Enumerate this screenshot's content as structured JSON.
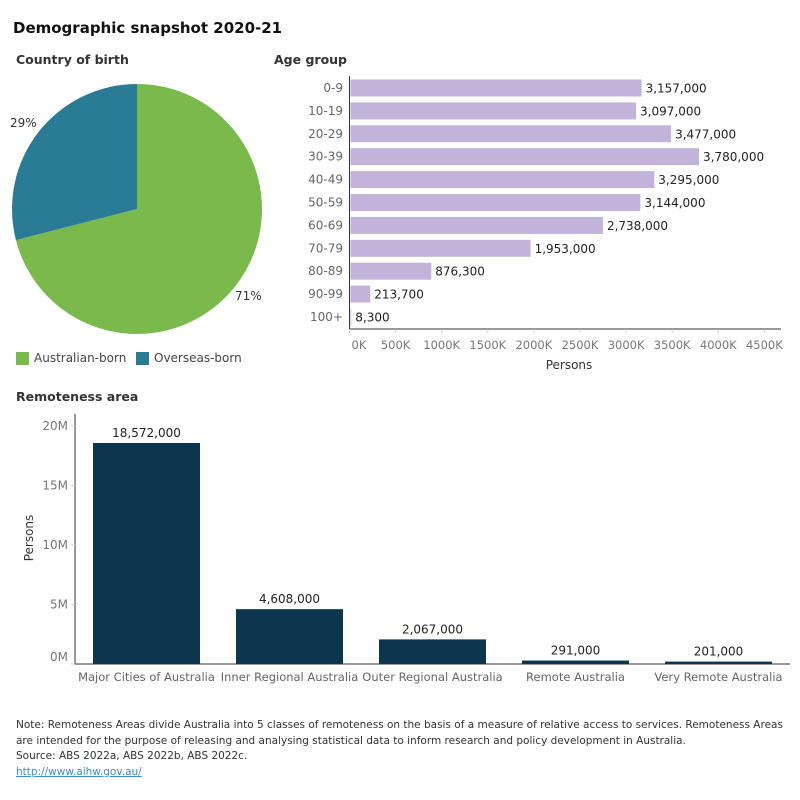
{
  "title": "Demographic snapshot 2020-21",
  "colors": {
    "australian_born": "#7ab94c",
    "overseas_born": "#2a7b96",
    "age_bar": "#c3b3da",
    "remote_bar": "#0b364d"
  },
  "chart_data": [
    {
      "type": "pie",
      "title": "Country of birth",
      "categories": [
        "Australian-born",
        "Overseas-born"
      ],
      "values": [
        71,
        29
      ],
      "labels": [
        "71%",
        "29%"
      ],
      "legend": "bottom"
    },
    {
      "type": "bar",
      "orientation": "horizontal",
      "title": "Age group",
      "categories": [
        "0-9",
        "10-19",
        "20-29",
        "30-39",
        "40-49",
        "50-59",
        "60-69",
        "70-79",
        "80-89",
        "90-99",
        "100+"
      ],
      "values": [
        3157000,
        3097000,
        3477000,
        3780000,
        3295000,
        3144000,
        2738000,
        1953000,
        876300,
        213700,
        8300
      ],
      "data_labels": [
        "3,157,000",
        "3,097,000",
        "3,477,000",
        "3,780,000",
        "3,295,000",
        "3,144,000",
        "2,738,000",
        "1,953,000",
        "876,300",
        "213,700",
        "8,300"
      ],
      "xlabel": "Persons",
      "xticks": [
        "0K",
        "500K",
        "1000K",
        "1500K",
        "2000K",
        "2500K",
        "3000K",
        "3500K",
        "4000K",
        "4500K"
      ],
      "xlim": [
        0,
        4680000
      ]
    },
    {
      "type": "bar",
      "title": "Remoteness area",
      "categories": [
        "Major Cities of Australia",
        "Inner Regional Australia",
        "Outer Regional Australia",
        "Remote Australia",
        "Very Remote Australia"
      ],
      "values": [
        18572000,
        4608000,
        2067000,
        291000,
        201000
      ],
      "data_labels": [
        "18,572,000",
        "4,608,000",
        "2,067,000",
        "291,000",
        "201,000"
      ],
      "ylabel": "Persons",
      "yticks": [
        "0M",
        "5M",
        "10M",
        "15M",
        "20M"
      ],
      "ylim": [
        0,
        20000000
      ]
    }
  ],
  "footer": {
    "note": "Note:  Remoteness Areas divide Australia into 5 classes of remoteness on the basis of a measure of relative access to services. Remoteness Areas are intended for the purpose of releasing and analysing statistical data to inform research and policy development in Australia.",
    "source": "Source:  ABS 2022a, ABS 2022b, ABS 2022c.",
    "link": "http://www.aihw.gov.au/"
  }
}
